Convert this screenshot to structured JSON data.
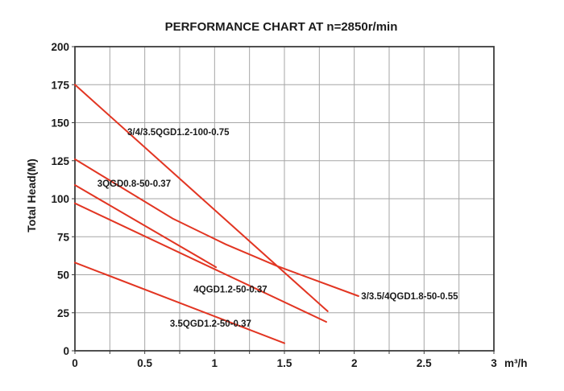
{
  "title": "PERFORMANCE CHART AT n=2850r/min",
  "colors": {
    "background": "#ffffff",
    "text": "#1b1b1b",
    "grid": "#a6a6a6",
    "axis": "#3c3c3c",
    "curve": "#e23522"
  },
  "chart_data": {
    "type": "line",
    "title": "PERFORMANCE CHART AT n=2850r/min",
    "xlabel": "m³/h",
    "ylabel": "Total Head(M)",
    "xlim": [
      0,
      3
    ],
    "ylim": [
      0,
      200
    ],
    "x_ticks": [
      0,
      0.5,
      1,
      1.5,
      2,
      2.5,
      3
    ],
    "x_tick_labels": [
      "0",
      "0.5",
      "1",
      "1.5",
      "2",
      "2.5",
      "3"
    ],
    "x_minor_step": 0.25,
    "y_ticks": [
      0,
      25,
      50,
      75,
      100,
      125,
      150,
      175,
      200
    ],
    "y_tick_step": 25,
    "grid": true,
    "legend_position": "inline-labels",
    "series": [
      {
        "name": "3/4/3.5QGD1.2-100-0.75",
        "points": [
          [
            0,
            175
          ],
          [
            1.81,
            26
          ]
        ],
        "label_pos": [
          0.375,
          143.5
        ]
      },
      {
        "name": "3/3.5/4QGD1.8-50-0.55",
        "points": [
          [
            0,
            126
          ],
          [
            0.7,
            87
          ],
          [
            1.08,
            70
          ],
          [
            1.44,
            56
          ],
          [
            2.03,
            36
          ]
        ],
        "label_pos": [
          2.05,
          35.5
        ]
      },
      {
        "name": "3QGD0.8-50-0.37",
        "points": [
          [
            0,
            109
          ],
          [
            1.01,
            55
          ]
        ],
        "label_pos": [
          0.16,
          109.5
        ]
      },
      {
        "name": "4QGD1.2-50-0.37",
        "points": [
          [
            0,
            97
          ],
          [
            1.8,
            19
          ]
        ],
        "label_pos": [
          0.85,
          40
        ]
      },
      {
        "name": "3.5QGD1.2-50-0.37",
        "points": [
          [
            0,
            58
          ],
          [
            1.5,
            5
          ]
        ],
        "label_pos": [
          0.68,
          17.5
        ]
      }
    ]
  }
}
